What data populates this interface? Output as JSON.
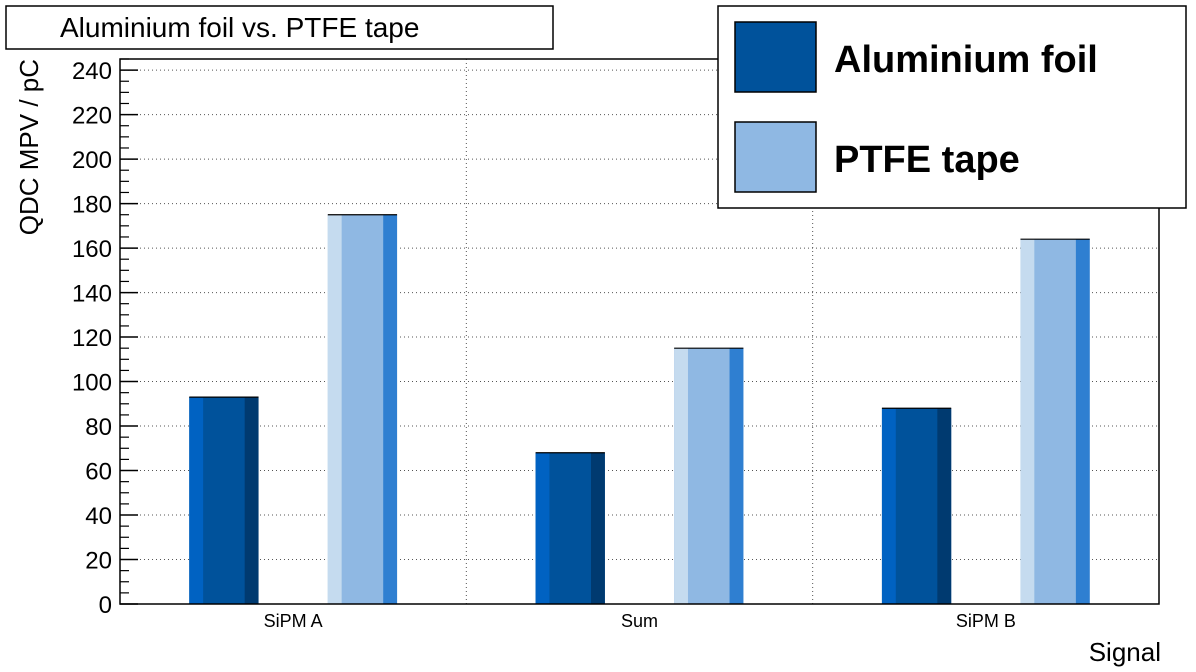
{
  "chart_data": {
    "type": "bar",
    "title": "Aluminium foil vs. PTFE tape",
    "xlabel": "Signal",
    "ylabel": "QDC MPV / pC",
    "categories": [
      "SiPM A",
      "Sum",
      "SiPM B"
    ],
    "ylim": [
      0,
      245
    ],
    "yticks": [
      "0",
      "20",
      "40",
      "60",
      "80",
      "100",
      "120",
      "140",
      "160",
      "180",
      "200",
      "220",
      "240"
    ],
    "grid": true,
    "legend_position": "top-right",
    "series": [
      {
        "name": "Aluminium foil",
        "values": [
          93,
          68,
          88
        ],
        "colors": {
          "main": "#00529b",
          "light": "#0062c2",
          "dark": "#003a70"
        }
      },
      {
        "name": "PTFE tape",
        "values": [
          175,
          115,
          164
        ],
        "colors": {
          "main": "#8fb8e3",
          "light": "#c5dbef",
          "dark": "#2f7fd1"
        }
      }
    ]
  }
}
